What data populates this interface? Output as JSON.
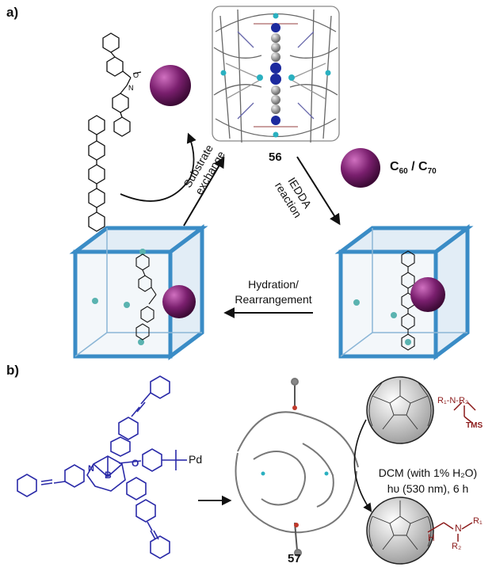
{
  "panel_a": {
    "label": "a)",
    "cage_number": "56",
    "fullerene_label": "C",
    "fullerene_sub1": "60",
    "fullerene_sep": " / C",
    "fullerene_sub2": "70",
    "step_substrate_1": "Substrate",
    "step_substrate_2": "exchange",
    "step_iedda_1": "IEDDA",
    "step_iedda_2": "reaction",
    "step_hydration_1": "Hydration/",
    "step_hydration_2": "Rearrangement"
  },
  "panel_b": {
    "label": "b)",
    "pd_label": "Pd",
    "cage_number": "57",
    "conditions_1": "DCM (with 1% H₂O)",
    "conditions_2": "hυ (530 nm), 6 h",
    "reagent_r1": "R₁",
    "reagent_n": "N",
    "reagent_r2": "R₂",
    "reagent_tms": "TMS",
    "product_h": "H",
    "product_n": "N",
    "product_r1": "R₁",
    "product_r2": "R₂",
    "core_b": "B",
    "core_o": "O",
    "core_n": "N"
  },
  "colors": {
    "fullerene_purple": "#7a1f6e",
    "cube_blue": "#3a8cc6",
    "ligand_blue": "#2a2aa8",
    "reagent_red": "#8b1a1a"
  }
}
